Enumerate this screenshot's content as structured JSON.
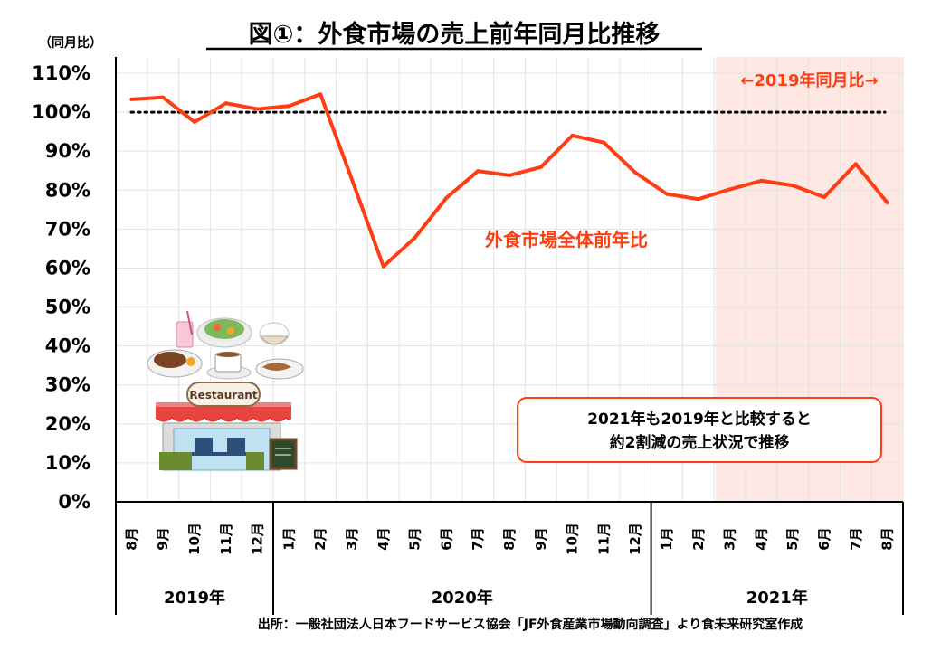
{
  "chart_data": {
    "type": "line",
    "title": "図①：外食市場の売上前年同月比推移",
    "ylabel": "（同月比）",
    "ylim": [
      0,
      110
    ],
    "y_ticks": [
      "0%",
      "10%",
      "20%",
      "30%",
      "40%",
      "50%",
      "60%",
      "70%",
      "80%",
      "90%",
      "100%",
      "110%"
    ],
    "grid": true,
    "x_month_labels": [
      "8月",
      "9月",
      "10月",
      "11月",
      "12月",
      "1月",
      "2月",
      "3月",
      "4月",
      "5月",
      "6月",
      "7月",
      "8月",
      "9月",
      "10月",
      "11月",
      "12月",
      "1月",
      "2月",
      "3月",
      "4月",
      "5月",
      "6月",
      "7月",
      "8月"
    ],
    "year_groups": [
      {
        "label": "2019年",
        "start": 0,
        "end": 4
      },
      {
        "label": "2020年",
        "start": 5,
        "end": 16
      },
      {
        "label": "2021年",
        "start": 17,
        "end": 24
      }
    ],
    "series": [
      {
        "name": "外食市場全体前年比",
        "color": "#ff3d12",
        "values": [
          103.3,
          103.8,
          97.5,
          102.3,
          100.8,
          101.6,
          104.6,
          82.7,
          60.4,
          67.8,
          78.0,
          84.9,
          83.8,
          85.9,
          94.0,
          92.2,
          84.5,
          79.0,
          77.7,
          80.2,
          82.4,
          81.2,
          78.2,
          86.7,
          76.8
        ]
      }
    ],
    "reference_line": {
      "value": 100
    },
    "highlight_band": {
      "start_index": 19,
      "end_index": 24,
      "label": "←2019年同月比→",
      "color": "#fde8e4"
    },
    "annotation": {
      "lines": [
        "2021年も2019年と比較すると",
        "約2割減の売上状況で推移"
      ],
      "border_color": "#ff3d12"
    }
  },
  "illustration": {
    "sign_text": "Restaurant"
  },
  "source": "出所：一般社団法人日本フードサービス協会「JF外食産業市場動向調査」より食未来研究室作成"
}
